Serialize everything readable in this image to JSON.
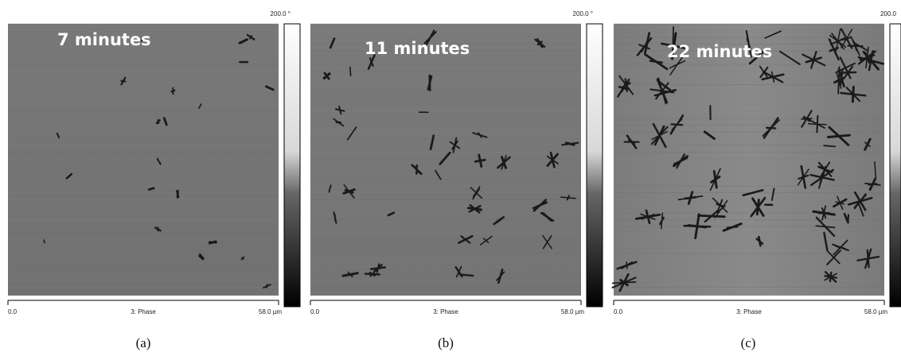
{
  "panels": [
    {
      "time_label": "7 minutes",
      "scale_max": "200.0 °",
      "axis_start": "0.0",
      "axis_title": "3: Phase",
      "axis_end": "58.0 µm",
      "caption": "(a)"
    },
    {
      "time_label": "11 minutes",
      "scale_max": "200.0 °",
      "axis_start": "0.0",
      "axis_title": "3: Phase",
      "axis_end": "58.0 µm",
      "caption": "(b)"
    },
    {
      "time_label": "22 minutes",
      "scale_max": "200.0",
      "axis_start": "0.0",
      "axis_title": "3: Phase",
      "axis_end": "58.0 µm",
      "caption": "(c)"
    }
  ]
}
